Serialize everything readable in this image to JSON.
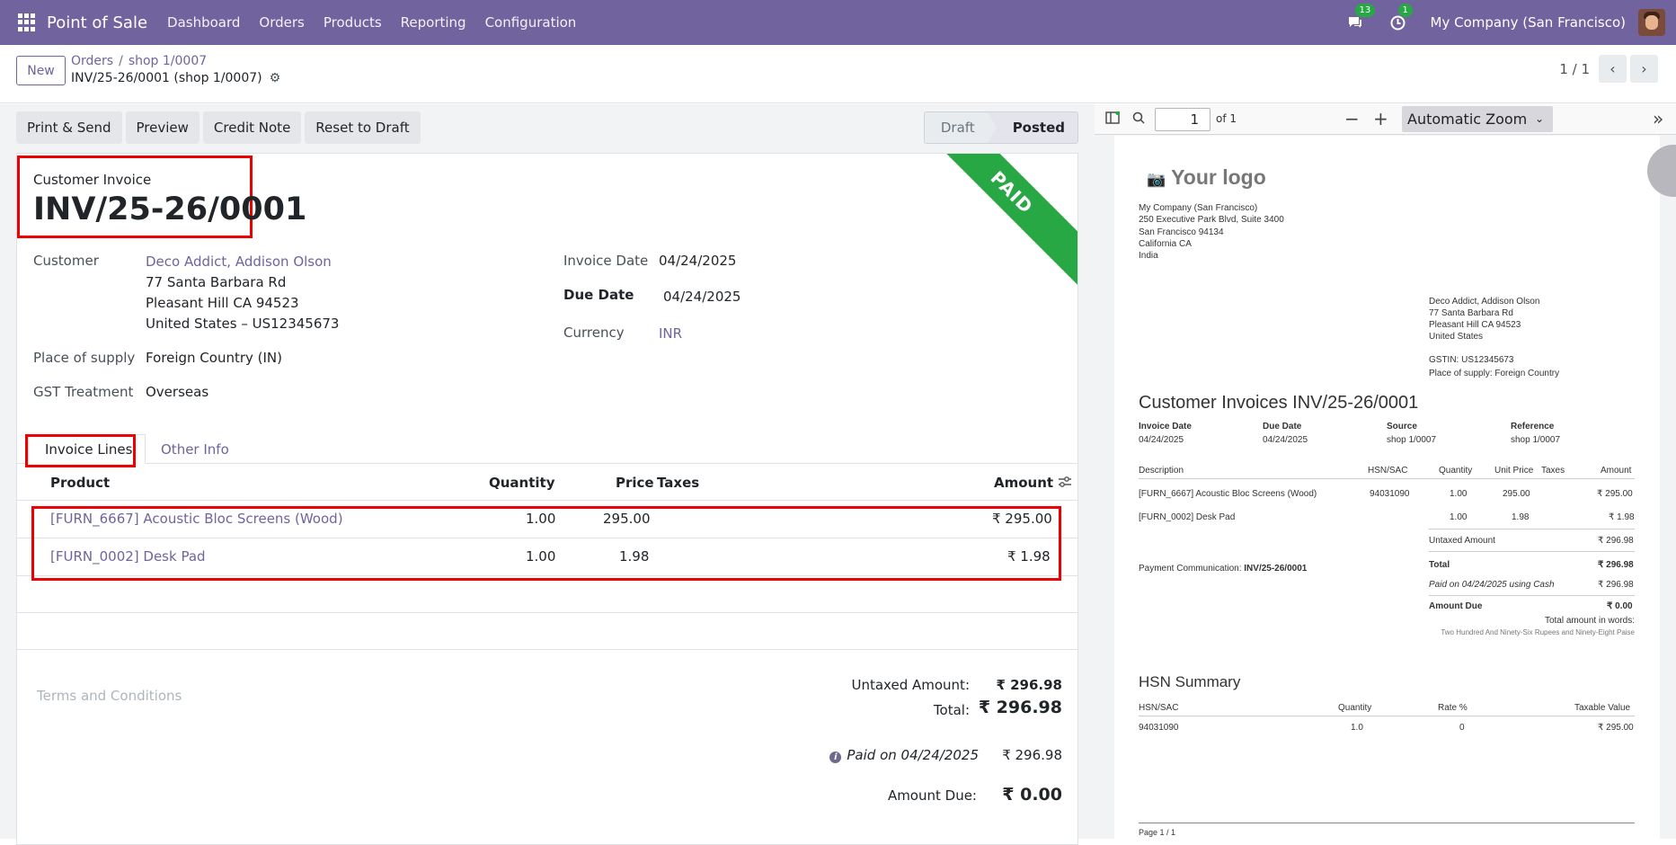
{
  "topbar": {
    "app_name": "Point of Sale",
    "menu": [
      "Dashboard",
      "Orders",
      "Products",
      "Reporting",
      "Configuration"
    ],
    "chat_count": "13",
    "activity_count": "1",
    "company": "My Company (San Francisco)"
  },
  "control": {
    "new_label": "New",
    "bc_orders": "Orders",
    "bc_sep": "/",
    "bc_shop": "shop 1/0007",
    "bc_current": "INV/25-26/0001 (shop 1/0007)",
    "pager": "1 / 1"
  },
  "actions": {
    "print_send": "Print & Send",
    "preview": "Preview",
    "credit_note": "Credit Note",
    "reset_draft": "Reset to Draft"
  },
  "stages": {
    "draft": "Draft",
    "posted": "Posted"
  },
  "invoice": {
    "ribbon": "PAID",
    "type": "Customer Invoice",
    "name": "INV/25-26/0001",
    "customer_label": "Customer",
    "customer_name": "Deco Addict, Addison Olson",
    "address1": "77 Santa Barbara Rd",
    "address2": "Pleasant Hill CA 94523",
    "address3": "United States – US12345673",
    "supply_label": "Place of supply",
    "supply_value": "Foreign Country (IN)",
    "gst_label": "GST Treatment",
    "gst_value": "Overseas",
    "invdate_label": "Invoice Date",
    "invdate_value": "04/24/2025",
    "duedate_label": "Due Date",
    "duedate_value": "04/24/2025",
    "currency_label": "Currency",
    "currency_value": "INR"
  },
  "tabs": {
    "lines": "Invoice Lines",
    "other": "Other Info"
  },
  "lines_table": {
    "headers": {
      "product": "Product",
      "quantity": "Quantity",
      "price": "Price",
      "taxes": "Taxes",
      "amount": "Amount"
    },
    "rows": [
      {
        "product": "[FURN_6667] Acoustic Bloc Screens (Wood)",
        "quantity": "1.00",
        "price": "295.00",
        "amount": "₹ 295.00"
      },
      {
        "product": "[FURN_0002] Desk Pad",
        "quantity": "1.00",
        "price": "1.98",
        "amount": "₹ 1.98"
      }
    ]
  },
  "totals": {
    "terms_placeholder": "Terms and Conditions",
    "untaxed_label": "Untaxed Amount:",
    "untaxed_value": "₹ 296.98",
    "total_label": "Total:",
    "total_value": "₹ 296.98",
    "paid_label": "Paid on 04/24/2025",
    "paid_value": "₹ 296.98",
    "due_label": "Amount Due:",
    "due_value": "₹ 0.00"
  },
  "pdf_viewer": {
    "page_number": "1",
    "of_pages": "of 1",
    "zoom": "Automatic Zoom",
    "doc": {
      "logo": "Your logo",
      "company_lines": [
        "My Company (San Francisco)",
        "250 Executive Park Blvd, Suite 3400",
        "San Francisco 94134",
        "California CA",
        "India"
      ],
      "partner_lines": [
        "Deco Addict, Addison Olson",
        "77 Santa Barbara Rd",
        "Pleasant Hill CA 94523",
        "United States"
      ],
      "gstin": "GSTIN: US12345673",
      "place_supply": "Place of supply: Foreign Country",
      "title": "Customer Invoices INV/25-26/0001",
      "info_headers": [
        "Invoice Date",
        "Due Date",
        "Source",
        "Reference"
      ],
      "info_values": [
        "04/24/2025",
        "04/24/2025",
        "shop 1/0007",
        "shop 1/0007"
      ],
      "line_headers": [
        "Description",
        "HSN/SAC",
        "Quantity",
        "Unit Price",
        "Taxes",
        "Amount"
      ],
      "line1": [
        "[FURN_6667] Acoustic Bloc Screens (Wood)",
        "94031090",
        "1.00",
        "295.00",
        "",
        "₹ 295.00"
      ],
      "line2": [
        "[FURN_0002] Desk Pad",
        "",
        "1.00",
        "1.98",
        "",
        "₹ 1.98"
      ],
      "payment_comm_label": "Payment Communication:",
      "payment_comm_value": "INV/25-26/0001",
      "untaxed_label": "Untaxed Amount",
      "untaxed_value": "₹ 296.98",
      "total_label": "Total",
      "total_value": "₹ 296.98",
      "paid_label": "Paid on 04/24/2025 using Cash",
      "paid_value": "₹ 296.98",
      "due_label": "Amount Due",
      "due_value": "₹ 0.00",
      "words_label": "Total amount in words:",
      "words_value": "Two Hundred And Ninety-Six Rupees and Ninety-Eight Paise",
      "hsn_title": "HSN Summary",
      "hsn_headers": [
        "HSN/SAC",
        "Quantity",
        "Rate %",
        "Taxable Value"
      ],
      "hsn_row": [
        "94031090",
        "1.0",
        "0",
        "₹ 295.00"
      ],
      "footer": "Page 1 / 1"
    }
  },
  "colors": {
    "brand": "#71639e",
    "paid": "#28a745",
    "highlight": "#ee0000"
  }
}
